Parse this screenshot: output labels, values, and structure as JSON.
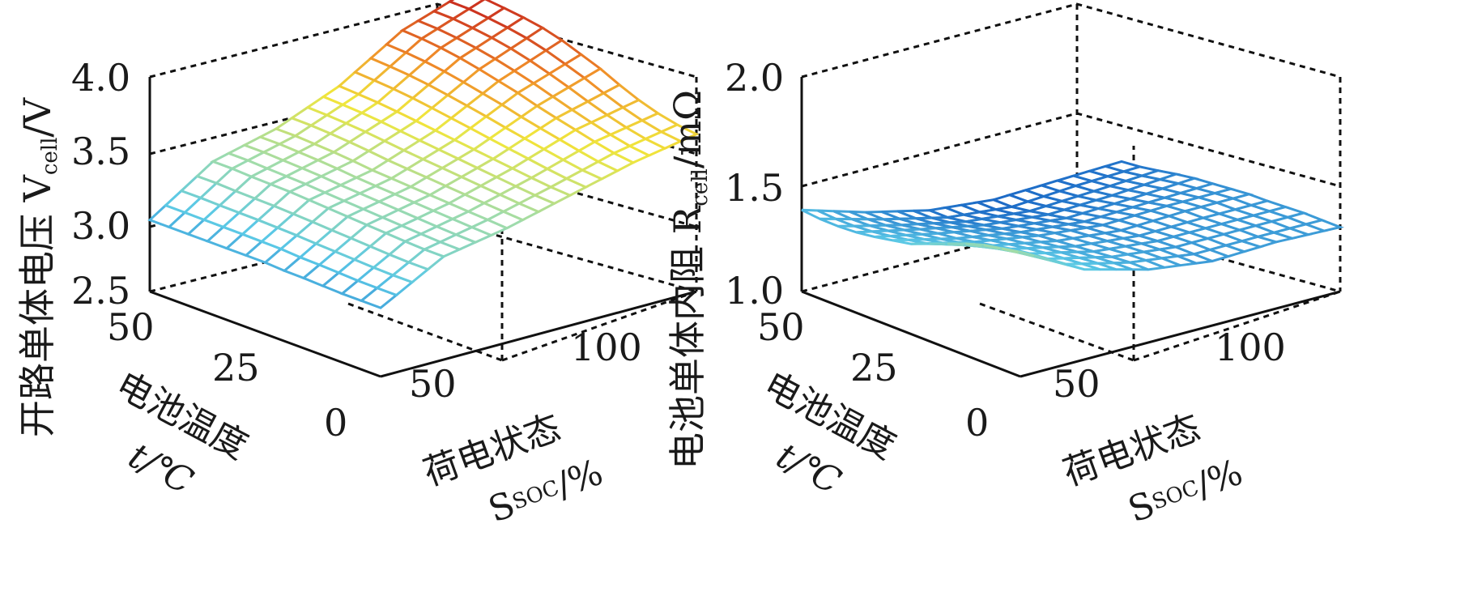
{
  "chart_data": [
    {
      "type": "surface",
      "zlabel_main": "开路单体电压 V",
      "zlabel_sub": "cell",
      "zlabel_unit": "/V",
      "xlabel_line1": "电池温度",
      "xlabel_line2": "t/℃",
      "ylabel_line1": "荷电状态",
      "ylabel_main": "S",
      "ylabel_sub": "SOC",
      "ylabel_unit": "/%",
      "zticks": [
        "2.5",
        "3.0",
        "3.5",
        "4.0"
      ],
      "xticks": [
        "50",
        "25",
        "0"
      ],
      "yticks": [
        "0",
        "50",
        "100"
      ],
      "zlim": [
        2.5,
        4.0
      ],
      "xlim": [
        0,
        50
      ],
      "ylim": [
        0,
        100
      ],
      "temperature_c": [
        0,
        5,
        10,
        15,
        20,
        25,
        30,
        35,
        40,
        45,
        50
      ],
      "soc_percent": [
        0,
        20,
        40,
        60,
        80,
        100
      ],
      "z_rows_by_temperature": [
        [
          2.98,
          3.22,
          3.3,
          3.41,
          3.52,
          3.6
        ],
        [
          2.98,
          3.22,
          3.31,
          3.42,
          3.54,
          3.62
        ],
        [
          2.98,
          3.23,
          3.32,
          3.44,
          3.58,
          3.66
        ],
        [
          2.99,
          3.24,
          3.33,
          3.46,
          3.62,
          3.72
        ],
        [
          2.99,
          3.25,
          3.34,
          3.48,
          3.66,
          3.8
        ],
        [
          3.0,
          3.26,
          3.35,
          3.5,
          3.71,
          3.86
        ],
        [
          3.0,
          3.27,
          3.36,
          3.52,
          3.75,
          3.92
        ],
        [
          3.0,
          3.28,
          3.38,
          3.54,
          3.79,
          3.96
        ],
        [
          3.0,
          3.28,
          3.39,
          3.56,
          3.82,
          3.98
        ],
        [
          3.0,
          3.29,
          3.4,
          3.57,
          3.84,
          4.0
        ],
        [
          3.0,
          3.29,
          3.4,
          3.58,
          3.85,
          4.0
        ]
      ],
      "grid": true
    },
    {
      "type": "surface",
      "zlabel_main": "电池单体内阻 R",
      "zlabel_sub": "cell",
      "zlabel_unit": "/mΩ",
      "xlabel_line1": "电池温度",
      "xlabel_line2": "t/℃",
      "ylabel_line1": "荷电状态",
      "ylabel_main": "S",
      "ylabel_sub": "SOC",
      "ylabel_unit": "/%",
      "zticks": [
        "1.0",
        "1.5",
        "2.0"
      ],
      "xticks": [
        "50",
        "25",
        "0"
      ],
      "yticks": [
        "0",
        "50",
        "100"
      ],
      "zlim": [
        1.0,
        2.0
      ],
      "xlim": [
        0,
        50
      ],
      "ylim": [
        0,
        100
      ],
      "temperature_c": [
        0,
        5,
        10,
        15,
        20,
        25,
        30,
        35,
        40,
        45,
        50
      ],
      "soc_percent": [
        0,
        20,
        40,
        60,
        80,
        100
      ],
      "z_rows_by_temperature": [
        [
          1.58,
          1.42,
          1.34,
          1.3,
          1.31,
          1.3
        ],
        [
          1.56,
          1.41,
          1.34,
          1.3,
          1.3,
          1.3
        ],
        [
          1.54,
          1.4,
          1.33,
          1.3,
          1.3,
          1.3
        ],
        [
          1.5,
          1.39,
          1.32,
          1.29,
          1.29,
          1.29
        ],
        [
          1.46,
          1.37,
          1.31,
          1.28,
          1.29,
          1.29
        ],
        [
          1.42,
          1.35,
          1.3,
          1.27,
          1.28,
          1.28
        ],
        [
          1.4,
          1.33,
          1.28,
          1.25,
          1.26,
          1.27
        ],
        [
          1.38,
          1.32,
          1.26,
          1.23,
          1.24,
          1.26
        ],
        [
          1.37,
          1.3,
          1.24,
          1.21,
          1.22,
          1.24
        ],
        [
          1.37,
          1.29,
          1.22,
          1.19,
          1.21,
          1.22
        ],
        [
          1.38,
          1.29,
          1.22,
          1.19,
          1.2,
          1.21
        ]
      ],
      "grid": true
    }
  ]
}
